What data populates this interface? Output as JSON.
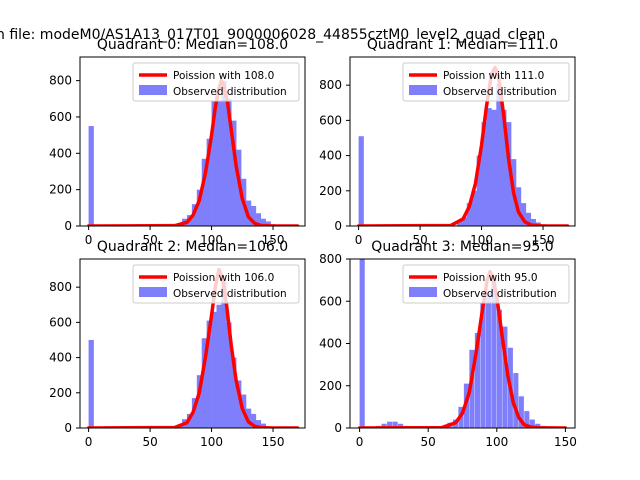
{
  "figure": {
    "suptitle": "n file: modeM0/AS1A13_017T01_9000006028_44855cztM0_level2_quad_clean"
  },
  "colors": {
    "observed": "#7f7ffb",
    "poisson": "#ff0000",
    "axis": "#000000"
  },
  "chart_data": [
    {
      "type": "bar",
      "title": "Quadrant 0: Median=108.0",
      "xlim": [
        -7,
        176
      ],
      "ylim": [
        0,
        930
      ],
      "xticks": [
        0,
        50,
        100,
        150
      ],
      "yticks": [
        0,
        200,
        400,
        600,
        800
      ],
      "legend": {
        "placement": "top-right"
      },
      "series": [
        {
          "name": "Poission with 108.0",
          "kind": "line",
          "x": [
            0,
            70,
            80,
            85,
            90,
            95,
            100,
            103,
            106,
            108,
            110,
            113,
            116,
            120,
            125,
            130,
            135,
            140,
            150,
            170
          ],
          "y": [
            0,
            2,
            20,
            60,
            140,
            290,
            500,
            650,
            760,
            800,
            770,
            680,
            530,
            330,
            150,
            50,
            15,
            3,
            0,
            0
          ]
        },
        {
          "name": "Observed distribution",
          "kind": "histogram",
          "bin_width": 4.25,
          "bins": [
            [
              0,
              550
            ],
            [
              76,
              40
            ],
            [
              80,
              60
            ],
            [
              84,
              120
            ],
            [
              88,
              200
            ],
            [
              92,
              370
            ],
            [
              96,
              480
            ],
            [
              100,
              690
            ],
            [
              104,
              690
            ],
            [
              108,
              800
            ],
            [
              112,
              700
            ],
            [
              116,
              580
            ],
            [
              120,
              420
            ],
            [
              124,
              260
            ],
            [
              128,
              140
            ],
            [
              132,
              110
            ],
            [
              136,
              70
            ],
            [
              140,
              40
            ],
            [
              144,
              25
            ],
            [
              148,
              10
            ]
          ]
        }
      ]
    },
    {
      "type": "bar",
      "title": "Quadrant 1: Median=111.0",
      "xlim": [
        -7,
        176
      ],
      "ylim": [
        0,
        960
      ],
      "xticks": [
        0,
        50,
        100,
        150
      ],
      "yticks": [
        0,
        200,
        400,
        600,
        800
      ],
      "legend": {
        "placement": "top-right"
      },
      "series": [
        {
          "name": "Poission with 111.0",
          "kind": "line",
          "x": [
            0,
            75,
            85,
            90,
            95,
            100,
            104,
            108,
            111,
            114,
            118,
            122,
            126,
            130,
            135,
            140,
            150,
            170
          ],
          "y": [
            0,
            3,
            40,
            110,
            240,
            460,
            680,
            860,
            900,
            840,
            630,
            380,
            190,
            80,
            25,
            6,
            0,
            0
          ]
        },
        {
          "name": "Observed distribution",
          "kind": "histogram",
          "bin_width": 4.25,
          "bins": [
            [
              0,
              510
            ],
            [
              80,
              30
            ],
            [
              84,
              50
            ],
            [
              88,
              130
            ],
            [
              92,
              200
            ],
            [
              96,
              400
            ],
            [
              100,
              590
            ],
            [
              104,
              670
            ],
            [
              108,
              660
            ],
            [
              112,
              810
            ],
            [
              116,
              660
            ],
            [
              120,
              590
            ],
            [
              124,
              380
            ],
            [
              128,
              220
            ],
            [
              132,
              130
            ],
            [
              136,
              75
            ],
            [
              140,
              40
            ],
            [
              144,
              20
            ],
            [
              148,
              10
            ]
          ]
        }
      ]
    },
    {
      "type": "bar",
      "title": "Quadrant 2: Median=106.0",
      "xlim": [
        -7,
        176
      ],
      "ylim": [
        0,
        960
      ],
      "xticks": [
        0,
        50,
        100,
        150
      ],
      "yticks": [
        0,
        200,
        400,
        600,
        800
      ],
      "legend": {
        "placement": "top-right"
      },
      "series": [
        {
          "name": "Poission with 106.0",
          "kind": "line",
          "x": [
            0,
            70,
            80,
            85,
            90,
            95,
            100,
            103,
            106,
            109,
            112,
            116,
            120,
            125,
            130,
            135,
            140,
            150,
            170
          ],
          "y": [
            0,
            3,
            30,
            90,
            200,
            400,
            640,
            800,
            900,
            850,
            710,
            470,
            270,
            110,
            35,
            10,
            2,
            0,
            0
          ]
        },
        {
          "name": "Observed distribution",
          "kind": "histogram",
          "bin_width": 4.25,
          "bins": [
            [
              0,
              500
            ],
            [
              72,
              20
            ],
            [
              76,
              50
            ],
            [
              80,
              80
            ],
            [
              84,
              170
            ],
            [
              88,
              300
            ],
            [
              92,
              510
            ],
            [
              96,
              610
            ],
            [
              100,
              660
            ],
            [
              104,
              700
            ],
            [
              108,
              830
            ],
            [
              112,
              600
            ],
            [
              116,
              400
            ],
            [
              120,
              270
            ],
            [
              124,
              190
            ],
            [
              128,
              110
            ],
            [
              132,
              80
            ],
            [
              136,
              45
            ],
            [
              140,
              25
            ],
            [
              144,
              10
            ]
          ]
        }
      ]
    },
    {
      "type": "bar",
      "title": "Quadrant 3: Median=95.0",
      "xlim": [
        -7,
        157
      ],
      "ylim": [
        0,
        800
      ],
      "xticks": [
        0,
        50,
        100,
        150
      ],
      "yticks": [
        0,
        200,
        400,
        600,
        800
      ],
      "legend": {
        "placement": "top-right"
      },
      "series": [
        {
          "name": "Poission with 95.0",
          "kind": "line",
          "x": [
            0,
            60,
            70,
            75,
            80,
            85,
            90,
            93,
            95,
            97,
            100,
            104,
            108,
            112,
            116,
            120,
            125,
            130,
            150
          ],
          "y": [
            0,
            2,
            25,
            70,
            170,
            360,
            580,
            700,
            740,
            720,
            620,
            430,
            250,
            120,
            50,
            15,
            4,
            1,
            0
          ]
        },
        {
          "name": "Observed distribution",
          "kind": "histogram",
          "bin_width": 3.75,
          "bins": [
            [
              0,
              800
            ],
            [
              12,
              10
            ],
            [
              16,
              20
            ],
            [
              20,
              30
            ],
            [
              24,
              30
            ],
            [
              28,
              20
            ],
            [
              32,
              10
            ],
            [
              60,
              10
            ],
            [
              64,
              25
            ],
            [
              68,
              40
            ],
            [
              72,
              100
            ],
            [
              76,
              210
            ],
            [
              80,
              370
            ],
            [
              84,
              450
            ],
            [
              88,
              590
            ],
            [
              92,
              640
            ],
            [
              96,
              710
            ],
            [
              100,
              560
            ],
            [
              104,
              480
            ],
            [
              108,
              380
            ],
            [
              112,
              260
            ],
            [
              116,
              150
            ],
            [
              120,
              80
            ],
            [
              124,
              40
            ],
            [
              128,
              20
            ],
            [
              132,
              10
            ]
          ]
        }
      ]
    }
  ]
}
